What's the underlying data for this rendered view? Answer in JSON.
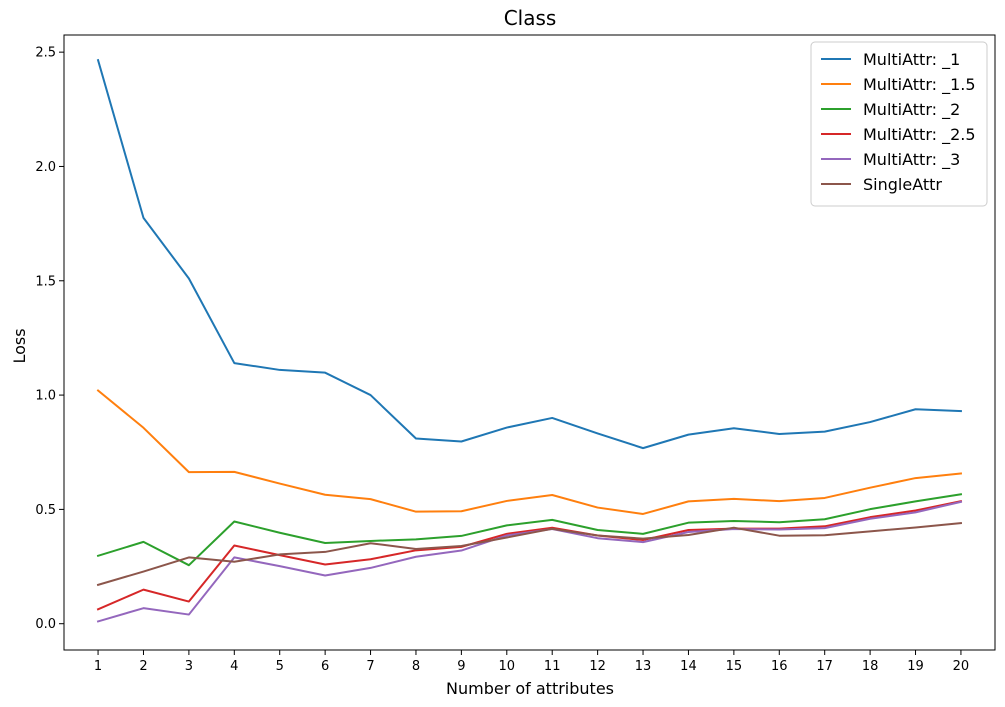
{
  "chart_data": {
    "type": "line",
    "title": "Class",
    "xlabel": "Number of attributes",
    "ylabel": "Loss",
    "x": [
      1,
      2,
      3,
      4,
      5,
      6,
      7,
      8,
      9,
      10,
      11,
      12,
      13,
      14,
      15,
      16,
      17,
      18,
      19,
      20
    ],
    "xlim": [
      0.25,
      20.75
    ],
    "ylim": [
      -0.115,
      2.575
    ],
    "yticks": [
      0.0,
      0.5,
      1.0,
      1.5,
      2.0,
      2.5
    ],
    "ytick_labels": [
      "0.0",
      "0.5",
      "1.0",
      "1.5",
      "2.0",
      "2.5"
    ],
    "grid": false,
    "legend_position": "top-right",
    "series": [
      {
        "name": "MultiAttr: _1",
        "color": "#1f77b4",
        "values": [
          2.465,
          1.775,
          1.51,
          1.14,
          1.11,
          1.098,
          1.0,
          0.81,
          0.797,
          0.858,
          0.9,
          0.832,
          0.768,
          0.827,
          0.855,
          0.83,
          0.84,
          0.882,
          0.938,
          0.93
        ]
      },
      {
        "name": "MultiAttr: _1.5",
        "color": "#ff7f0e",
        "values": [
          1.02,
          0.857,
          0.663,
          0.664,
          0.613,
          0.564,
          0.545,
          0.49,
          0.492,
          0.537,
          0.563,
          0.508,
          0.48,
          0.535,
          0.546,
          0.536,
          0.55,
          0.595,
          0.637,
          0.657
        ]
      },
      {
        "name": "MultiAttr: _2",
        "color": "#2ca02c",
        "values": [
          0.297,
          0.358,
          0.256,
          0.447,
          0.398,
          0.353,
          0.362,
          0.369,
          0.384,
          0.43,
          0.454,
          0.41,
          0.393,
          0.442,
          0.449,
          0.444,
          0.457,
          0.501,
          0.535,
          0.566
        ]
      },
      {
        "name": "MultiAttr: _2.5",
        "color": "#d62728",
        "values": [
          0.063,
          0.149,
          0.097,
          0.342,
          0.3,
          0.259,
          0.282,
          0.321,
          0.336,
          0.393,
          0.42,
          0.386,
          0.366,
          0.41,
          0.416,
          0.416,
          0.426,
          0.466,
          0.495,
          0.536
        ]
      },
      {
        "name": "MultiAttr: _3",
        "color": "#9467bd",
        "values": [
          0.01,
          0.068,
          0.04,
          0.29,
          0.252,
          0.211,
          0.244,
          0.293,
          0.32,
          0.386,
          0.414,
          0.374,
          0.357,
          0.401,
          0.414,
          0.412,
          0.418,
          0.459,
          0.487,
          0.533
        ]
      },
      {
        "name": "SingleAttr",
        "color": "#8c564b",
        "values": [
          0.17,
          0.228,
          0.29,
          0.271,
          0.303,
          0.314,
          0.352,
          0.327,
          0.34,
          0.377,
          0.415,
          0.386,
          0.372,
          0.388,
          0.42,
          0.385,
          0.387,
          0.404,
          0.421,
          0.44
        ]
      }
    ]
  }
}
